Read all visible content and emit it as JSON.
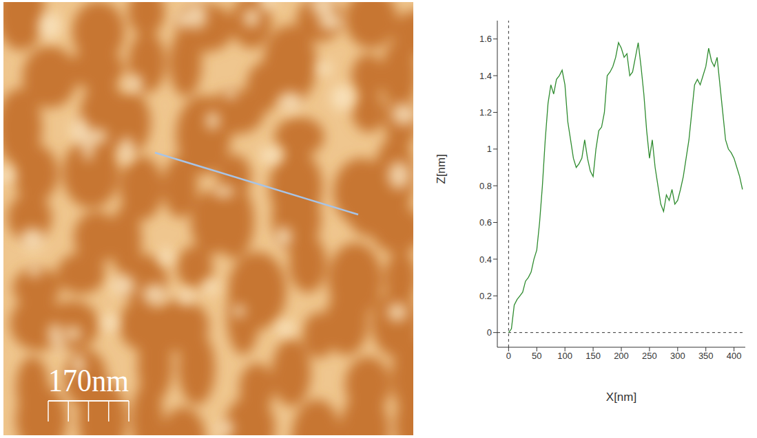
{
  "image": {
    "scale_bar_label": "170nm"
  },
  "chart_data": {
    "type": "line",
    "x_label": "X[nm]",
    "y_label": "Z[nm]",
    "x": [
      0,
      5,
      10,
      15,
      20,
      25,
      30,
      35,
      40,
      45,
      50,
      55,
      60,
      65,
      70,
      75,
      80,
      85,
      90,
      95,
      100,
      105,
      110,
      115,
      120,
      125,
      130,
      135,
      140,
      145,
      150,
      155,
      160,
      165,
      170,
      175,
      180,
      185,
      190,
      195,
      200,
      205,
      210,
      215,
      220,
      225,
      230,
      235,
      240,
      245,
      250,
      255,
      260,
      265,
      270,
      275,
      280,
      285,
      290,
      295,
      300,
      305,
      310,
      315,
      320,
      325,
      330,
      335,
      340,
      345,
      350,
      355,
      360,
      365,
      370,
      375,
      380,
      385,
      390,
      395,
      400,
      405,
      410,
      415
    ],
    "values": [
      0,
      0.02,
      0.15,
      0.18,
      0.2,
      0.22,
      0.28,
      0.3,
      0.33,
      0.4,
      0.45,
      0.6,
      0.8,
      1.05,
      1.25,
      1.35,
      1.3,
      1.38,
      1.4,
      1.43,
      1.35,
      1.15,
      1.05,
      0.95,
      0.9,
      0.92,
      0.95,
      1.05,
      0.95,
      0.88,
      0.85,
      1.0,
      1.1,
      1.12,
      1.2,
      1.4,
      1.42,
      1.45,
      1.5,
      1.58,
      1.55,
      1.5,
      1.52,
      1.4,
      1.42,
      1.5,
      1.58,
      1.45,
      1.3,
      1.1,
      0.95,
      1.05,
      0.9,
      0.8,
      0.7,
      0.66,
      0.75,
      0.72,
      0.78,
      0.7,
      0.72,
      0.78,
      0.85,
      0.95,
      1.05,
      1.2,
      1.35,
      1.38,
      1.35,
      1.4,
      1.45,
      1.55,
      1.48,
      1.45,
      1.5,
      1.35,
      1.2,
      1.05,
      1.0,
      0.98,
      0.95,
      0.9,
      0.85,
      0.78
    ],
    "color": "#2e8b2e",
    "xlim": [
      -20,
      420
    ],
    "xticks": [
      0,
      50,
      100,
      150,
      200,
      250,
      300,
      350,
      400
    ],
    "ylim": [
      -0.08,
      1.7
    ],
    "yticks": [
      0,
      0.2,
      0.4,
      0.6,
      0.8,
      1,
      1.2,
      1.4,
      1.6
    ],
    "grid": false
  }
}
